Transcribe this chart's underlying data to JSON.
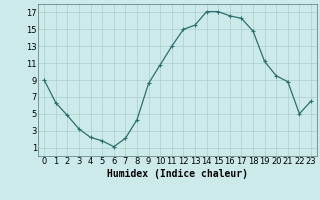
{
  "x": [
    0,
    1,
    2,
    3,
    4,
    5,
    6,
    7,
    8,
    9,
    10,
    11,
    12,
    13,
    14,
    15,
    16,
    17,
    18,
    19,
    20,
    21,
    22,
    23
  ],
  "y": [
    9,
    6.3,
    4.8,
    3.2,
    2.2,
    1.8,
    1.1,
    2.1,
    4.3,
    8.6,
    10.8,
    13.0,
    15.0,
    15.5,
    17.1,
    17.1,
    16.6,
    16.3,
    14.8,
    11.2,
    9.5,
    8.8,
    5.0,
    6.5
  ],
  "line_color": "#2d6e6e",
  "marker": "+",
  "marker_size": 3,
  "marker_linewidth": 0.8,
  "line_width": 0.9,
  "bg_color": "#cceaea",
  "grid_color": "#aacece",
  "xlabel": "Humidex (Indice chaleur)",
  "xlabel_fontsize": 7,
  "tick_fontsize": 6,
  "xlim": [
    -0.5,
    23.5
  ],
  "ylim": [
    0,
    18
  ],
  "yticks": [
    1,
    3,
    5,
    7,
    9,
    11,
    13,
    15,
    17
  ],
  "xticks": [
    0,
    1,
    2,
    3,
    4,
    5,
    6,
    7,
    8,
    9,
    10,
    11,
    12,
    13,
    14,
    15,
    16,
    17,
    18,
    19,
    20,
    21,
    22,
    23
  ]
}
